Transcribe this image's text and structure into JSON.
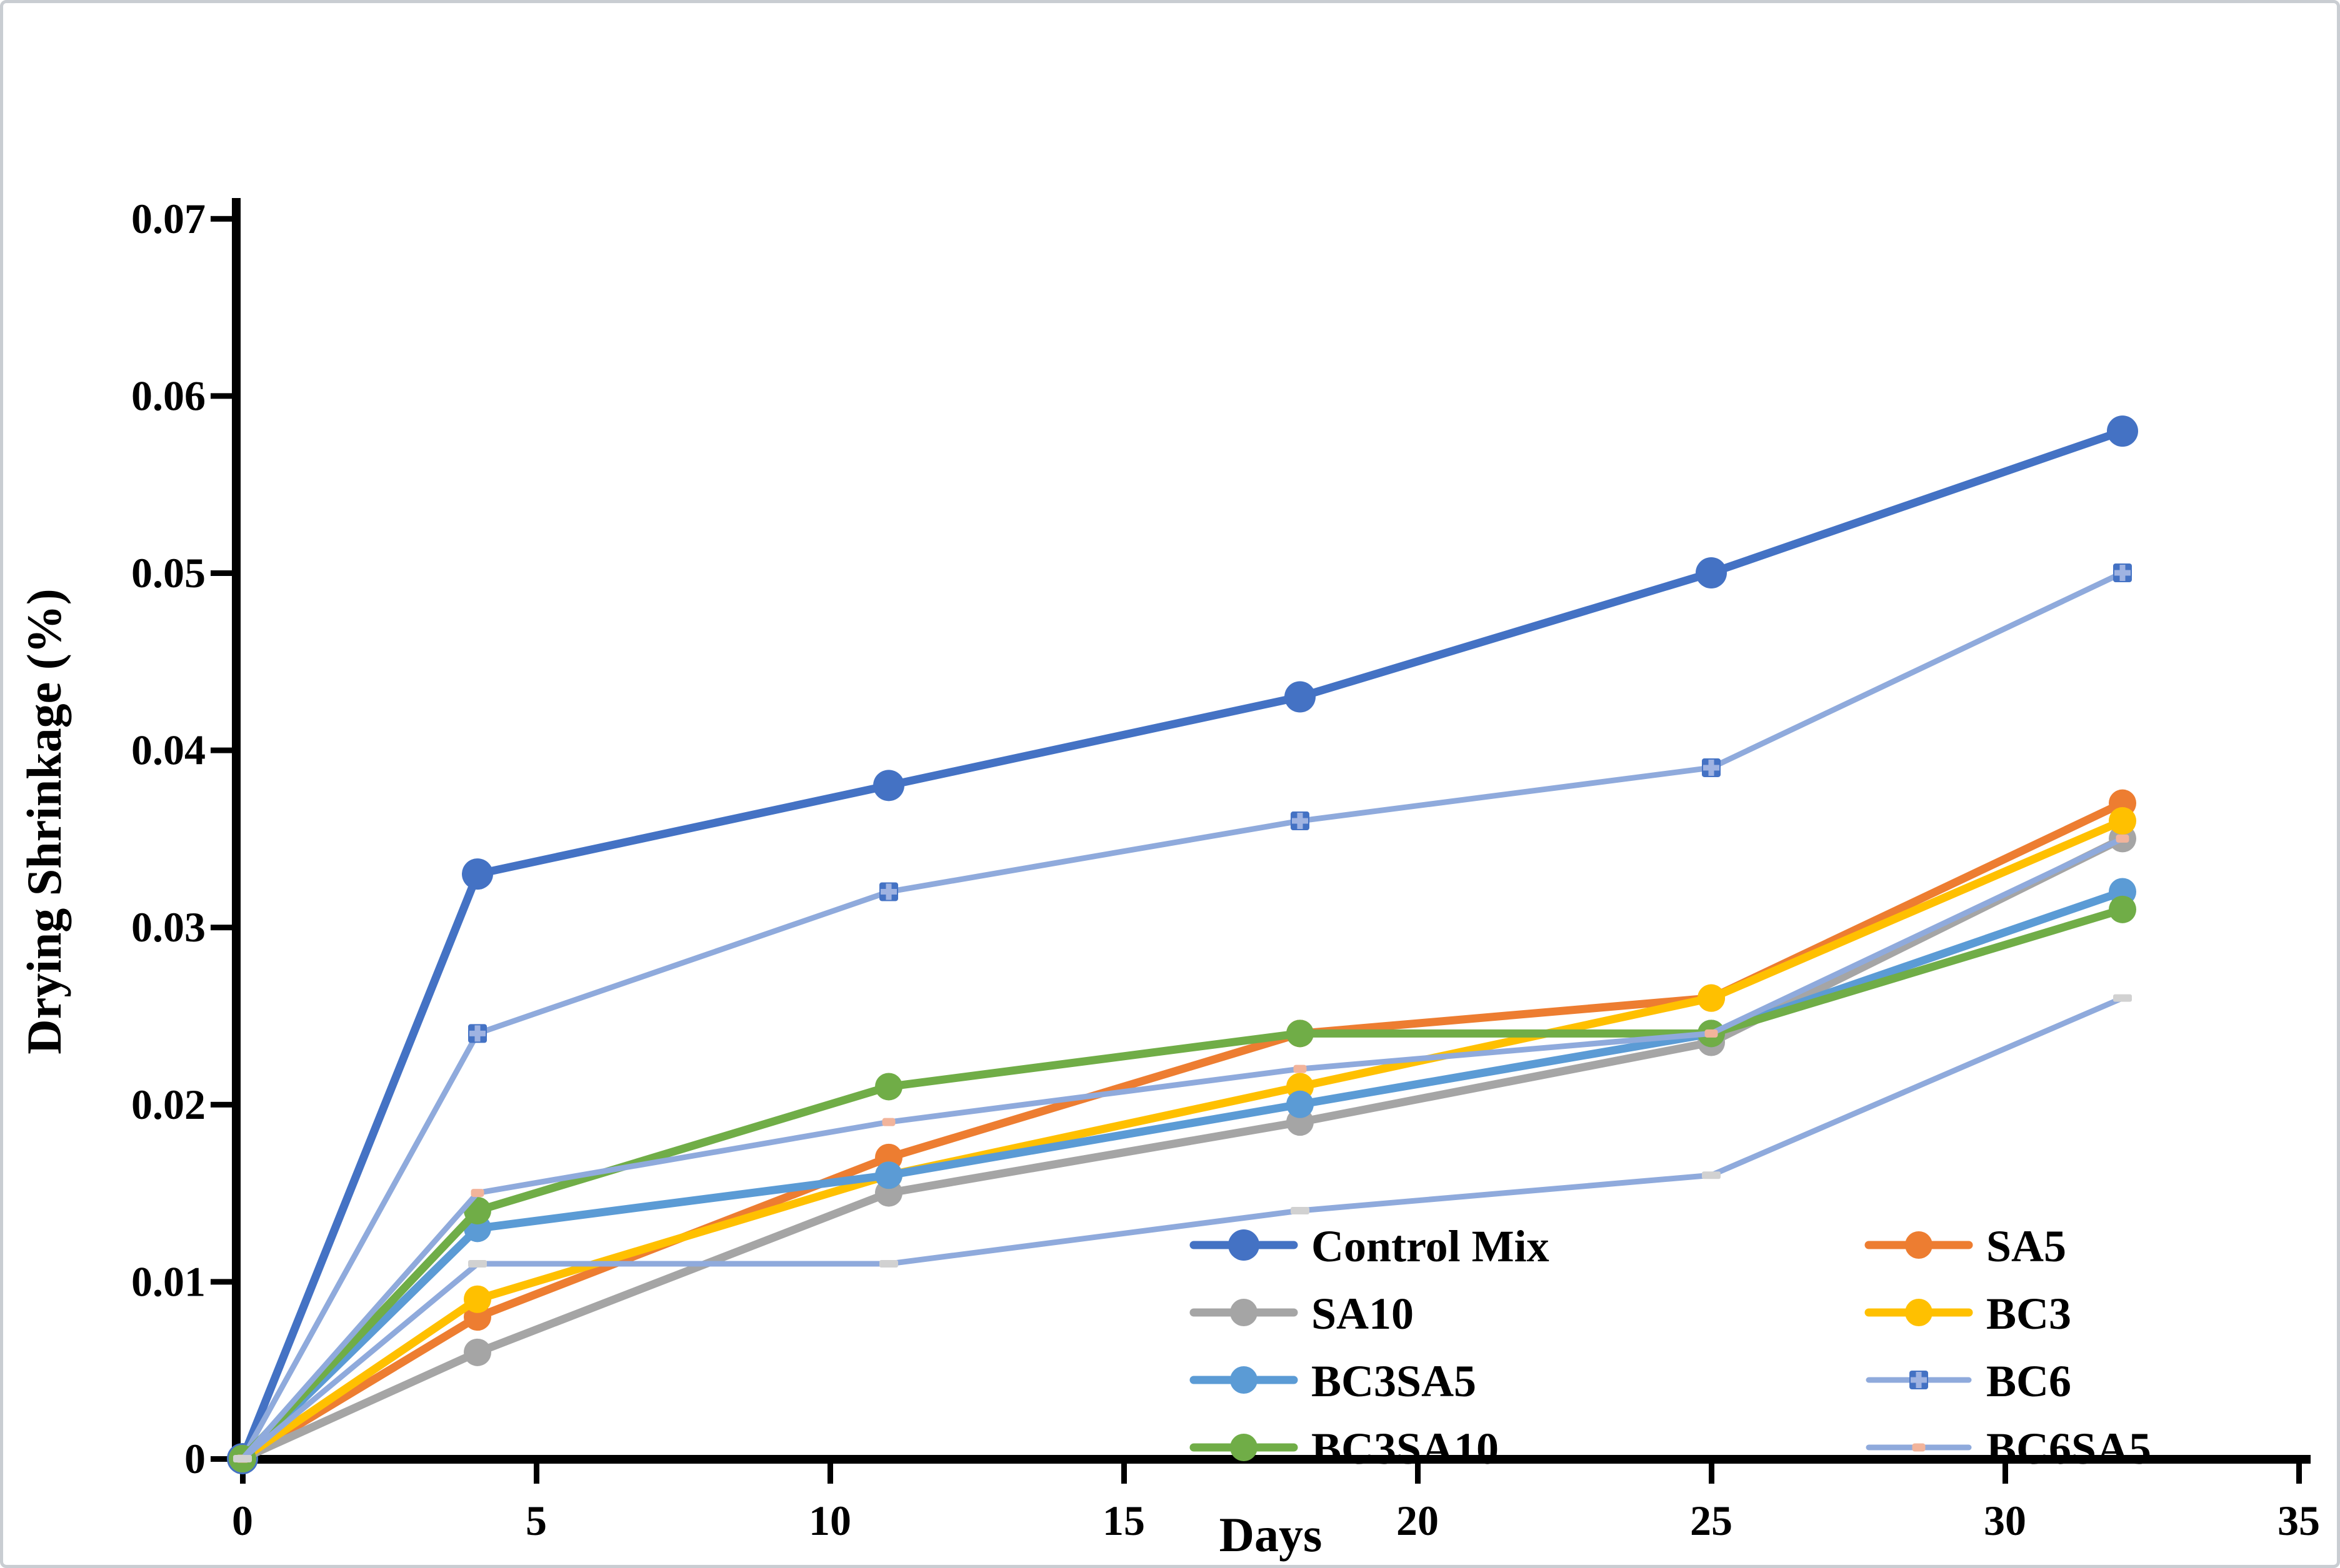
{
  "chart_data": {
    "type": "line",
    "title": "",
    "xlabel": "Days",
    "ylabel": "Drying Shrinkage (%)",
    "x": [
      0,
      4,
      11,
      18,
      25,
      32
    ],
    "xlim": [
      0,
      35
    ],
    "ylim": [
      0,
      0.07
    ],
    "grid": false,
    "x_ticks": {
      "values": [
        0,
        5,
        10,
        15,
        20,
        25,
        30,
        35
      ],
      "labels": [
        "0",
        "5",
        "10",
        "15",
        "20",
        "25",
        "30",
        "35"
      ]
    },
    "y_ticks": {
      "values": [
        0,
        0.01,
        0.02,
        0.03,
        0.04,
        0.05,
        0.06,
        0.07
      ],
      "labels": [
        "0",
        "0.01",
        "0.02",
        "0.03",
        "0.04",
        "0.05",
        "0.06",
        "0.07"
      ]
    },
    "series": [
      {
        "name": "Control Mix",
        "values": [
          0,
          0.033,
          0.038,
          0.043,
          0.05,
          0.058
        ],
        "color": "#4472C4",
        "marker": "circle",
        "marker_color": "#4472C4",
        "line_width": 13,
        "marker_size": 25
      },
      {
        "name": "SA5",
        "values": [
          0,
          0.008,
          0.017,
          0.024,
          0.026,
          0.037
        ],
        "color": "#ED7D31",
        "marker": "circle",
        "marker_color": "#ED7D31",
        "line_width": 13,
        "marker_size": 22
      },
      {
        "name": "SA10",
        "values": [
          0,
          0.006,
          0.015,
          0.019,
          0.0235,
          0.035
        ],
        "color": "#A5A5A5",
        "marker": "circle",
        "marker_color": "#A5A5A5",
        "line_width": 13,
        "marker_size": 22
      },
      {
        "name": "BC3",
        "values": [
          0,
          0.009,
          0.016,
          0.021,
          0.026,
          0.036
        ],
        "color": "#FFC000",
        "marker": "circle",
        "marker_color": "#FFC000",
        "line_width": 13,
        "marker_size": 22
      },
      {
        "name": "BC3SA5",
        "values": [
          0,
          0.013,
          0.016,
          0.02,
          0.024,
          0.032
        ],
        "color": "#5B9BD5",
        "marker": "circle",
        "marker_color": "#5B9BD5",
        "line_width": 13,
        "marker_size": 22
      },
      {
        "name": "BC6",
        "values": [
          0,
          0.024,
          0.032,
          0.036,
          0.039,
          0.05
        ],
        "color": "#8FAADC",
        "marker": "plus",
        "marker_color": "#4472C4",
        "marker_inner_color": "#9FB3E2",
        "line_width": 9,
        "marker_size": 30
      },
      {
        "name": "BC3SA10",
        "values": [
          0,
          0.014,
          0.021,
          0.024,
          0.024,
          0.031
        ],
        "color": "#70AD47",
        "marker": "circle",
        "marker_color": "#70AD47",
        "line_width": 13,
        "marker_size": 22
      },
      {
        "name": "BC6SA5",
        "values": [
          0,
          0.015,
          0.019,
          0.022,
          0.024,
          0.035
        ],
        "color": "#8FAADC",
        "marker": "square",
        "marker_color": "#F2B49B",
        "line_width": 9,
        "marker_size": 21
      },
      {
        "name": "",
        "values": [
          0,
          0.011,
          0.011,
          0.014,
          0.016,
          0.026
        ],
        "color": "#8FAADC",
        "marker": "dash",
        "marker_color": "#D1D1D1",
        "line_width": 9,
        "marker_size": 30,
        "in_legend": false
      }
    ],
    "legend": {
      "position": "inside-bottom",
      "columns": [
        [
          "Control Mix",
          "SA10",
          "BC3SA5",
          "BC3SA10"
        ],
        [
          "SA5",
          "BC3",
          "BC6",
          "BC6SA5"
        ]
      ]
    },
    "axis_color": "#000000",
    "frame_color": "#c9cdd2"
  }
}
